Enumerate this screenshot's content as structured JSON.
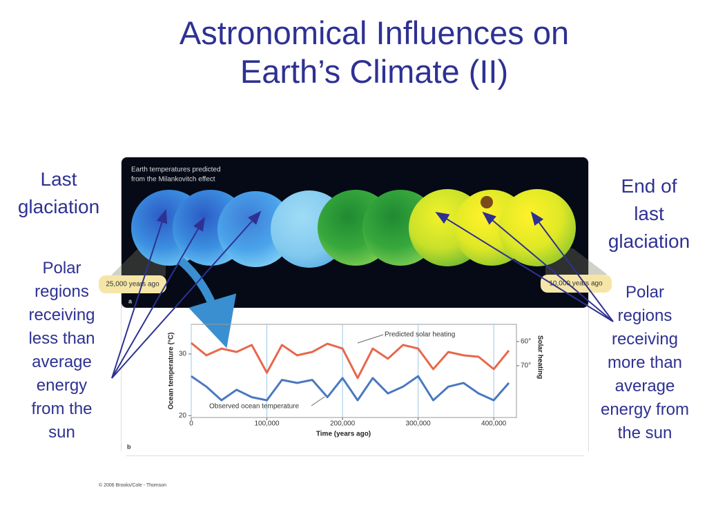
{
  "title_lines": [
    "Astronomical Influences on",
    "Earth’s Climate (II)"
  ],
  "left": {
    "heading_lines": [
      "Last",
      "glaciation"
    ],
    "note": "Polar regions receiving less than average energy from the sun"
  },
  "right": {
    "heading_lines": [
      "End of",
      "last",
      "glaciation"
    ],
    "note": "Polar regions receiving more than average energy from the sun"
  },
  "figure": {
    "caption_a": [
      "Earth temperatures predicted",
      "from the Milankovitch effect"
    ],
    "start_label": "25,000 years ago",
    "end_label": "10,000 years ago",
    "panel_a": "a",
    "panel_b": "b",
    "credit": "© 2006 Brooks/Cole - Thomson"
  },
  "chart_data": {
    "type": "line",
    "xlabel": "Time (years ago)",
    "ylabel": "Ocean temperature (°C)",
    "y2label": "Solar heating",
    "x": [
      0,
      20000,
      40000,
      60000,
      80000,
      100000,
      120000,
      140000,
      160000,
      180000,
      200000,
      220000,
      240000,
      260000,
      280000,
      300000,
      320000,
      340000,
      360000,
      380000,
      400000,
      420000
    ],
    "xlim": [
      0,
      430000
    ],
    "xticks": [
      0,
      {
        "value": 100000,
        "label": "100,000"
      },
      {
        "value": 200000,
        "label": "200,000"
      },
      {
        "value": 300000,
        "label": "300,000"
      },
      {
        "value": 400000,
        "label": "400,000"
      }
    ],
    "ylim": [
      19.7,
      34.8
    ],
    "yticks": [
      20,
      30
    ],
    "y2lim": [
      91.4,
      52.9
    ],
    "y2ticks": [
      {
        "value": 60,
        "label": "60°"
      },
      {
        "value": 70,
        "label": "70°"
      }
    ],
    "grid": true,
    "series": [
      {
        "name": "Predicted solar heating",
        "color": "#e8674a",
        "axis": "y2",
        "values": [
          60.6,
          65.7,
          62.9,
          64.3,
          61.4,
          72.9,
          61.4,
          65.7,
          64.3,
          60.9,
          62.9,
          75.1,
          62.9,
          67.1,
          61.4,
          62.9,
          71.4,
          64.3,
          65.7,
          66.3,
          71.4,
          63.7
        ]
      },
      {
        "name": "Observed ocean temperature",
        "color": "#4a78c0",
        "values": [
          26.4,
          24.7,
          22.5,
          24.2,
          23.0,
          22.5,
          25.8,
          25.3,
          25.8,
          23.0,
          26.1,
          22.5,
          26.1,
          23.6,
          24.7,
          26.4,
          22.5,
          24.7,
          25.3,
          23.6,
          22.5,
          25.3
        ]
      }
    ]
  }
}
